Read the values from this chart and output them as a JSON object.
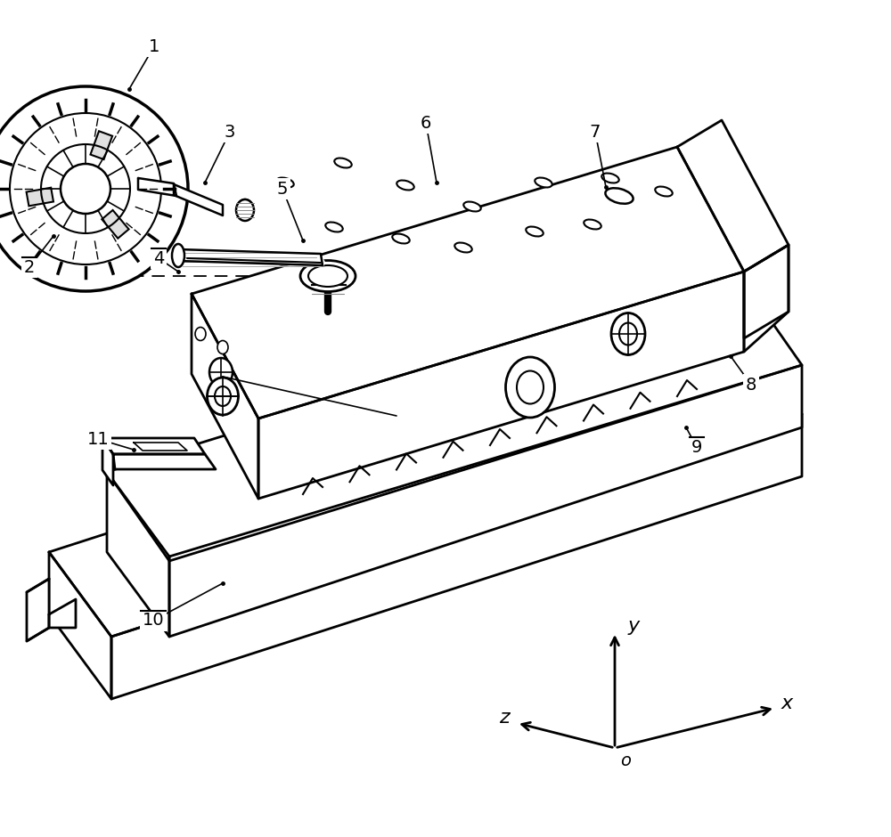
{
  "background_color": "#ffffff",
  "line_color": "#000000",
  "lw_main": 2.0,
  "lw_thin": 1.2,
  "font_size_label": 14,
  "font_size_axis": 16,
  "font_size_dim": 13
}
